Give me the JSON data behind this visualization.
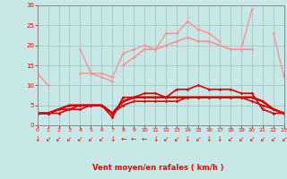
{
  "x": [
    0,
    1,
    2,
    3,
    4,
    5,
    6,
    7,
    8,
    9,
    10,
    11,
    12,
    13,
    14,
    15,
    16,
    17,
    18,
    19,
    20,
    21,
    22,
    23
  ],
  "line1": [
    13,
    10,
    null,
    null,
    13,
    13,
    12,
    11,
    null,
    null,
    null,
    null,
    null,
    null,
    null,
    null,
    null,
    null,
    null,
    null,
    null,
    null,
    null,
    null
  ],
  "line2": [
    null,
    null,
    null,
    null,
    19,
    13,
    13,
    12,
    18,
    19,
    20,
    19,
    23,
    23,
    26,
    24,
    23,
    21,
    null,
    19,
    29,
    null,
    23,
    12
  ],
  "line3": [
    null,
    null,
    null,
    null,
    null,
    null,
    null,
    null,
    15,
    17,
    19,
    19,
    20,
    21,
    22,
    21,
    21,
    20,
    19,
    19,
    19,
    null,
    null,
    null
  ],
  "line4": [
    3,
    3,
    4,
    4,
    4,
    5,
    5,
    2,
    7,
    7,
    8,
    8,
    7,
    9,
    9,
    10,
    9,
    9,
    9,
    8,
    8,
    4,
    3,
    3
  ],
  "line5": [
    3,
    3,
    4,
    5,
    5,
    5,
    5,
    3,
    6,
    7,
    7,
    7,
    7,
    7,
    7,
    7,
    7,
    7,
    7,
    7,
    7,
    6,
    4,
    3
  ],
  "line6": [
    3,
    3,
    3,
    4,
    5,
    5,
    5,
    3,
    5,
    6,
    6,
    6,
    6,
    6,
    7,
    7,
    7,
    7,
    7,
    7,
    6,
    5,
    4,
    3
  ],
  "background_color": "#c8e8e8",
  "grid_color": "#a0c8c8",
  "line_color_light": "#ff9090",
  "line_color_dark": "#dd0000",
  "xlabel": "Vent moyen/en rafales ( km/h )",
  "ylim": [
    0,
    30
  ],
  "xlim": [
    0,
    23
  ],
  "yticks": [
    0,
    5,
    10,
    15,
    20,
    25,
    30
  ],
  "xticks": [
    0,
    1,
    2,
    3,
    4,
    5,
    6,
    7,
    8,
    9,
    10,
    11,
    12,
    13,
    14,
    15,
    16,
    17,
    18,
    19,
    20,
    21,
    22,
    23
  ],
  "arrow_chars": [
    "↓",
    "↙",
    "↙",
    "↙",
    "↙",
    "↙",
    "↙",
    "↓",
    "←",
    "←",
    "←",
    "↓",
    "↙",
    "↙",
    "↓",
    "↙",
    "↓",
    "↓",
    "↙",
    "↙",
    "↙",
    "↙",
    "↙",
    "↙"
  ]
}
